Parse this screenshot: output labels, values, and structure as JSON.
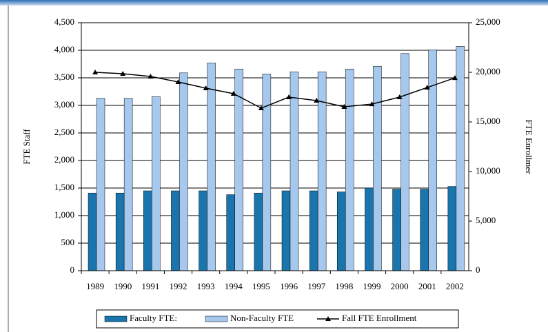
{
  "chart_data": {
    "type": "bar",
    "categories": [
      "1989",
      "1990",
      "1991",
      "1992",
      "1993",
      "1994",
      "1995",
      "1996",
      "1997",
      "1998",
      "1999",
      "2000",
      "2001",
      "2002"
    ],
    "y_label": "FTE Staff",
    "y2_label": "FTE Enrollmer",
    "ylim": [
      0,
      4500
    ],
    "yticks": [
      0,
      500,
      {
        "value": 1000,
        "label": "1,000"
      },
      {
        "value": 1500,
        "label": "1,500"
      },
      {
        "value": 2000,
        "label": "2,000"
      },
      {
        "value": 2500,
        "label": "2,500"
      },
      {
        "value": 3000,
        "label": "3,000"
      },
      {
        "value": 3500,
        "label": "3,500"
      },
      {
        "value": 4000,
        "label": "4,000"
      },
      {
        "value": 4500,
        "label": "4,500"
      }
    ],
    "y2lim": [
      0,
      25000
    ],
    "y2ticks": [
      0,
      {
        "value": 5000,
        "label": "5,000"
      },
      {
        "value": 10000,
        "label": "10,000"
      },
      {
        "value": 15000,
        "label": "15,000"
      },
      {
        "value": 20000,
        "label": "20,000"
      },
      {
        "value": 25000,
        "label": "25,000"
      }
    ],
    "grid": true,
    "series": [
      {
        "name": "Faculty FTE:",
        "color": "#1b75ad",
        "values": [
          1410,
          1410,
          1450,
          1450,
          1450,
          1380,
          1410,
          1450,
          1450,
          1430,
          1500,
          1480,
          1480,
          1530
        ]
      },
      {
        "name": "Non-Faculty FTE",
        "color": "#a6c8ec",
        "values": [
          3130,
          3130,
          3160,
          3590,
          3770,
          3660,
          3570,
          3610,
          3610,
          3660,
          3710,
          3940,
          4010,
          4070
        ]
      },
      {
        "name": "Fall FTE Enrollment",
        "type": "line",
        "axis": "y2",
        "color": "#000000",
        "values": [
          20000,
          19860,
          19580,
          19030,
          18400,
          17850,
          16390,
          17500,
          17150,
          16530,
          16800,
          17500,
          18470,
          19440
        ]
      }
    ]
  }
}
